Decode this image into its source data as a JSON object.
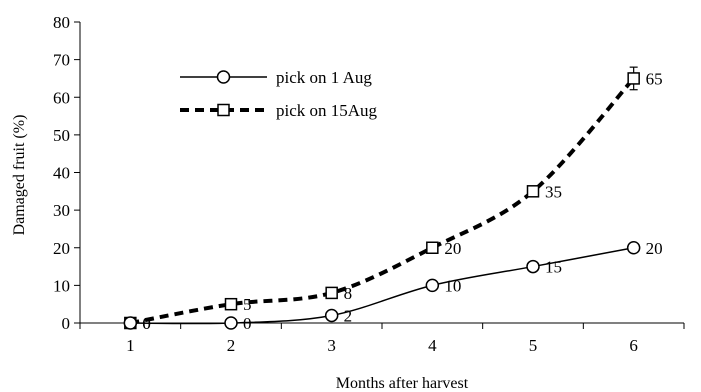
{
  "chart_data": {
    "type": "line",
    "title": "",
    "xlabel": "Months after harvest",
    "ylabel": "Damaged fruit (%)",
    "x": [
      1,
      2,
      3,
      4,
      5,
      6
    ],
    "x_ticks": [
      "1",
      "2",
      "3",
      "4",
      "5",
      "6"
    ],
    "y_ticks": [
      "0",
      "10",
      "20",
      "30",
      "40",
      "50",
      "60",
      "70",
      "80"
    ],
    "ylim": [
      0,
      80
    ],
    "xlim": [
      0.5,
      6.5
    ],
    "grid": false,
    "legend_position": "top-left",
    "series": [
      {
        "name": "pick on 1 Aug",
        "values": [
          0,
          0,
          2,
          10,
          15,
          20
        ],
        "labels": [
          "0",
          "0",
          "2",
          "10",
          "15",
          "20"
        ],
        "marker": "circle",
        "line_style": "solid",
        "error": [
          0,
          0,
          0,
          0,
          0,
          1
        ]
      },
      {
        "name": "pick on 15Aug",
        "values": [
          0,
          5,
          8,
          20,
          35,
          65
        ],
        "labels": [
          "0",
          "5",
          "8",
          "20",
          "35",
          "65"
        ],
        "marker": "square",
        "line_style": "dashed",
        "error": [
          0,
          0,
          0,
          0,
          0,
          3
        ]
      }
    ]
  }
}
